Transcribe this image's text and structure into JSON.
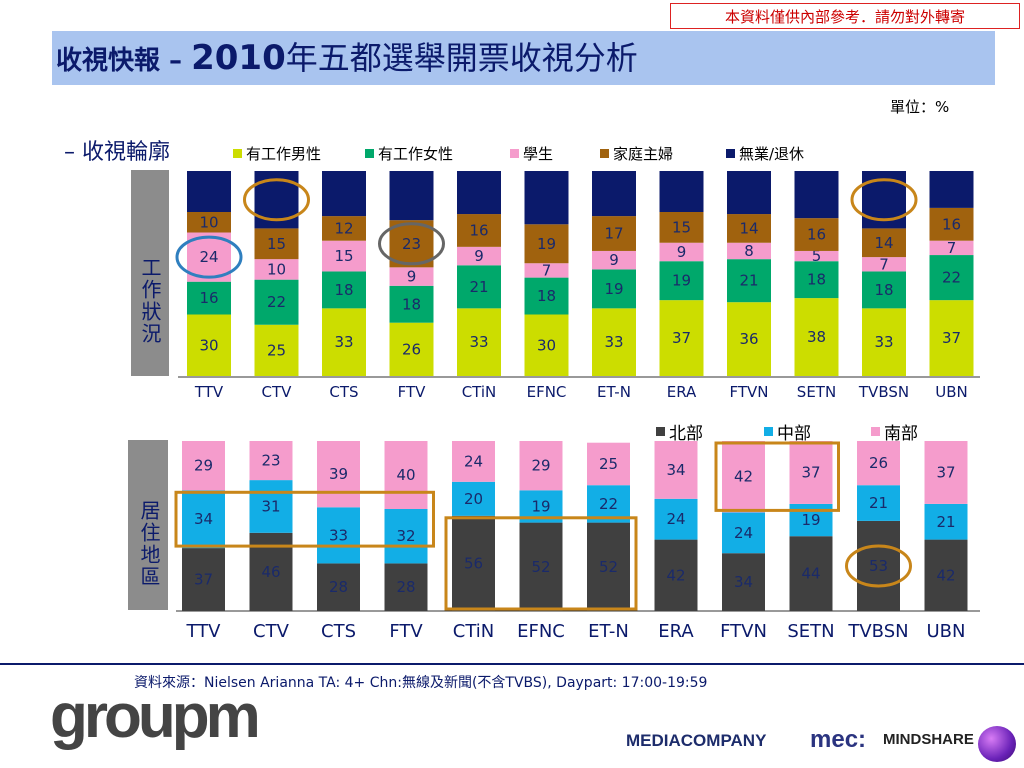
{
  "notice": "本資料僅供內部參考．請勿對外轉寄",
  "title_prefix": "收視快報 – ",
  "title_year": "2010",
  "title_main": "年五都選舉開票收視分析",
  "unit": "單位：%",
  "section_label": "– 收視輪廓",
  "panel1_label": "工作狀況",
  "panel2_label": "居住地區",
  "source": "資料來源：Nielsen Arianna TA: 4+ Chn:無線及新聞(不含TVBS), Daypart: 17:00-19:59",
  "logos": {
    "groupm": "groupm",
    "mediacompany": "MEDIACOMPANY",
    "mec": "mec:",
    "mindshare": "MINDSHARE"
  },
  "chart_data": [
    {
      "type": "bar",
      "stacked": true,
      "categories": [
        "TTV",
        "CTV",
        "CTS",
        "FTV",
        "CTiN",
        "EFNC",
        "ET-N",
        "ERA",
        "FTVN",
        "SETN",
        "TVBSN",
        "UBN"
      ],
      "series": [
        {
          "name": "有工作男性",
          "color": "#ccdd00",
          "values": [
            30,
            25,
            33,
            26,
            33,
            30,
            33,
            37,
            36,
            38,
            33,
            37
          ]
        },
        {
          "name": "有工作女性",
          "color": "#00a86b",
          "values": [
            16,
            22,
            18,
            18,
            21,
            18,
            19,
            19,
            21,
            18,
            18,
            22
          ]
        },
        {
          "name": "學生",
          "color": "#f59ccc",
          "values": [
            24,
            10,
            15,
            9,
            9,
            7,
            9,
            9,
            8,
            5,
            7,
            7
          ]
        },
        {
          "name": "家庭主婦",
          "color": "#a0620e",
          "values": [
            10,
            15,
            12,
            23,
            16,
            19,
            17,
            15,
            14,
            16,
            14,
            16
          ]
        },
        {
          "name": "無業/退休",
          "color": "#0b1a6b",
          "values": [
            20,
            28,
            22,
            24,
            21,
            26,
            22,
            20,
            21,
            23,
            28,
            18
          ]
        }
      ],
      "value_labels_shown": {
        "有工作男性": true,
        "有工作女性": true,
        "學生": true,
        "家庭主婦": true,
        "無業/退休": false
      },
      "ylim": [
        0,
        100
      ],
      "legend": "top"
    },
    {
      "type": "bar",
      "stacked": true,
      "categories": [
        "TTV",
        "CTV",
        "CTS",
        "FTV",
        "CTiN",
        "EFNC",
        "ET-N",
        "ERA",
        "FTVN",
        "SETN",
        "TVBSN",
        "UBN"
      ],
      "series": [
        {
          "name": "北部",
          "color": "#404040",
          "values": [
            37,
            46,
            28,
            28,
            56,
            52,
            52,
            42,
            34,
            44,
            53,
            42
          ]
        },
        {
          "name": "中部",
          "color": "#12aee6",
          "values": [
            34,
            31,
            33,
            32,
            20,
            19,
            22,
            24,
            24,
            19,
            21,
            21
          ]
        },
        {
          "name": "南部",
          "color": "#f59ccc",
          "values": [
            29,
            23,
            39,
            40,
            24,
            29,
            25,
            34,
            42,
            37,
            26,
            37
          ]
        }
      ],
      "ylim": [
        0,
        100
      ],
      "legend": "top-right"
    }
  ],
  "highlights": {
    "circles": [
      {
        "panel": 1,
        "category": "TTV",
        "series": "學生",
        "color": "#2f7fbf"
      },
      {
        "panel": 1,
        "category": "CTV",
        "series": "無業/退休",
        "color": "#c8861a"
      },
      {
        "panel": 1,
        "category": "FTV",
        "series": "家庭主婦",
        "color": "#666666"
      },
      {
        "panel": 1,
        "category": "TVBSN",
        "series": "無業/退休",
        "color": "#c8861a"
      },
      {
        "panel": 2,
        "category": "TVBSN",
        "series": "北部",
        "color": "#c8861a"
      }
    ],
    "boxes": [
      {
        "panel": 2,
        "categories": [
          "TTV",
          "FTV"
        ],
        "series": "中部",
        "color": "#c8861a"
      },
      {
        "panel": 2,
        "categories": [
          "CTiN",
          "ET-N"
        ],
        "series": "北部",
        "color": "#c8861a"
      },
      {
        "panel": 2,
        "categories": [
          "FTVN",
          "SETN"
        ],
        "series": "南部",
        "color": "#c8861a"
      }
    ]
  }
}
